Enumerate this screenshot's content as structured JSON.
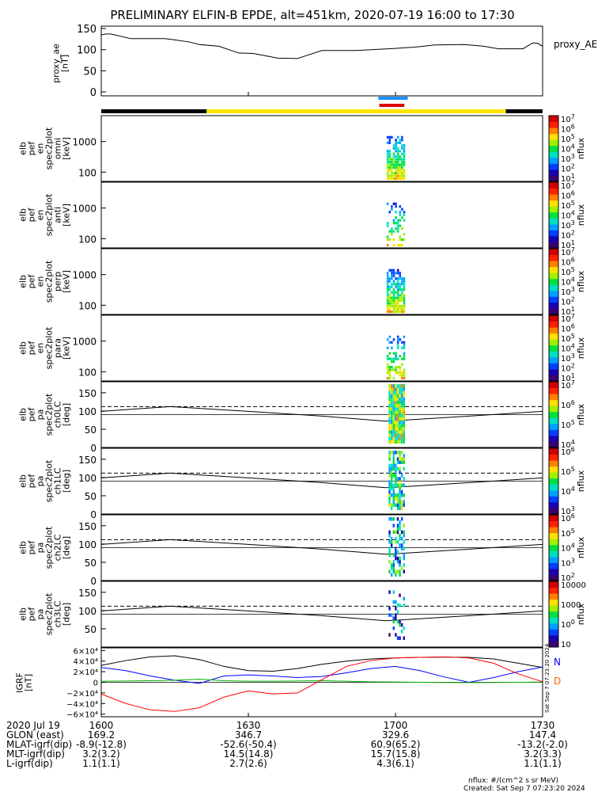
{
  "title": "PRELIMINARY ELFIN-B EPDE, alt=451km, 2020-07-19 16:00 to 17:30",
  "colors": {
    "black": "#000000",
    "yellow": "#ffe600",
    "blue_bar": "#1e90ff",
    "red_bar": "#e00000",
    "gsm_x": "#000000",
    "gsm_y": "#0000ff",
    "gsm_z": "#00b000",
    "gsm_tot": "#ff0000"
  },
  "chart_data": [
    {
      "type": "line",
      "panel": "proxy_AE",
      "ylabel_lines": [
        "proxy_ae",
        "[nT]"
      ],
      "legend": "proxy_AE",
      "ylim": [
        0,
        150
      ],
      "yticks": [
        "0",
        "50",
        "100",
        "150"
      ],
      "x_minutes": [
        0,
        1,
        2,
        6,
        10,
        13,
        15,
        18,
        20,
        24,
        28,
        31,
        36,
        40,
        45,
        52,
        60,
        64,
        68,
        74,
        78,
        81,
        86,
        88,
        89,
        90
      ],
      "values": [
        135,
        137,
        137,
        126,
        126,
        126,
        123,
        118,
        112,
        108,
        92,
        91,
        80,
        79,
        98,
        98,
        103,
        106,
        111,
        112,
        108,
        102,
        102,
        116,
        115,
        108
      ]
    },
    {
      "type": "bar",
      "panel": "orbit/science indicator bars",
      "segments": [
        {
          "label": "black",
          "from_minute": 0,
          "to_minute": 21.5
        },
        {
          "label": "yellow",
          "from_minute": 21.5,
          "to_minute": 82.5
        },
        {
          "label": "black",
          "from_minute": 82.5,
          "to_minute": 90
        }
      ],
      "markers": [
        {
          "label": "blue",
          "from_minute": 56.5,
          "to_minute": 62.5
        },
        {
          "label": "red",
          "from_minute": 56.7,
          "to_minute": 61.8
        }
      ]
    },
    {
      "type": "heatmap",
      "panel": "elb pef spec2plot omni",
      "ylabel_lines": [
        "elb",
        "pef",
        "en",
        "spec2plot",
        "omni",
        "[keV]"
      ],
      "yscale": "log",
      "ylim": [
        50,
        7000
      ],
      "yticks": [
        "100",
        "1000"
      ],
      "colorbar": {
        "label": "nflux",
        "ticks": [
          "101",
          "102",
          "103",
          "104",
          "105",
          "106",
          "107"
        ]
      }
    },
    {
      "type": "heatmap",
      "panel": "elb pef spec2plot anti",
      "ylabel_lines": [
        "elb",
        "pef",
        "en",
        "spec2plot",
        "anti",
        "[keV]"
      ],
      "yscale": "log",
      "ylim": [
        50,
        7000
      ],
      "yticks": [
        "100",
        "1000"
      ],
      "colorbar": {
        "label": "nflux",
        "ticks": [
          "101",
          "102",
          "103",
          "104",
          "105",
          "106",
          "107"
        ]
      }
    },
    {
      "type": "heatmap",
      "panel": "elb pef spec2plot perp",
      "ylabel_lines": [
        "elb",
        "pef",
        "en",
        "spec2plot",
        "perp",
        "[keV]"
      ],
      "yscale": "log",
      "ylim": [
        50,
        7000
      ],
      "yticks": [
        "100",
        "1000"
      ],
      "colorbar": {
        "label": "nflux",
        "ticks": [
          "101",
          "102",
          "103",
          "104",
          "105",
          "106",
          "107"
        ]
      }
    },
    {
      "type": "heatmap",
      "panel": "elb pef spec2plot para",
      "ylabel_lines": [
        "elb",
        "pef",
        "en",
        "spec2plot",
        "para",
        "[keV]"
      ],
      "yscale": "log",
      "ylim": [
        50,
        7000
      ],
      "yticks": [
        "100",
        "1000"
      ],
      "colorbar": {
        "label": "nflux",
        "ticks": [
          "101",
          "102",
          "103",
          "104",
          "105",
          "106",
          "107"
        ]
      }
    },
    {
      "type": "heatmap",
      "panel": "elb pef spec2plot ch0LC",
      "ylabel_lines": [
        "elb",
        "pef",
        "pa",
        "spec2plot",
        "ch0LC",
        "[deg]"
      ],
      "ylim": [
        0,
        180
      ],
      "yticks": [
        "0",
        "50",
        "100",
        "150"
      ],
      "colorbar": {
        "label": "nflux",
        "ticks": [
          "104",
          "105",
          "106",
          "107"
        ]
      }
    },
    {
      "type": "heatmap",
      "panel": "elb pef spec2plot ch1LC",
      "ylabel_lines": [
        "elb",
        "pef",
        "pa",
        "spec2plot",
        "ch1LC",
        "[deg]"
      ],
      "ylim": [
        0,
        180
      ],
      "yticks": [
        "0",
        "50",
        "100",
        "150"
      ],
      "colorbar": {
        "label": "nflux",
        "ticks": [
          "103",
          "104",
          "105",
          "106"
        ]
      }
    },
    {
      "type": "heatmap",
      "panel": "elb pef spec2plot ch2LC",
      "ylabel_lines": [
        "elb",
        "pef",
        "pa",
        "spec2plot",
        "ch2LC",
        "[deg]"
      ],
      "ylim": [
        0,
        180
      ],
      "yticks": [
        "0",
        "50",
        "100",
        "150"
      ],
      "colorbar": {
        "label": "nflux",
        "ticks": [
          "102",
          "103",
          "104",
          "105",
          "106"
        ]
      }
    },
    {
      "type": "heatmap",
      "panel": "elb pef spec2plot ch3LC",
      "ylabel_lines": [
        "elb",
        "pef",
        "pa",
        "spec2plot",
        "ch3LC",
        "[deg]"
      ],
      "ylim": [
        0,
        180
      ],
      "yticks": [
        "50",
        "100",
        "150"
      ],
      "colorbar": {
        "label": "nflux",
        "ticks": [
          "10",
          "100",
          "1000",
          "10000"
        ]
      }
    },
    {
      "type": "line",
      "panel": "IGRF",
      "ylabel_lines": [
        "IGRF",
        "[nT]"
      ],
      "ylim": [
        -65000,
        65000
      ],
      "yticks": [
        "6×10⁴",
        "4×10⁴",
        "2×10⁴",
        "0",
        "−2×10⁴",
        "−4×10⁴",
        "−6×10⁴"
      ],
      "legend_letters": [
        "N",
        "D"
      ],
      "x_minutes": [
        0,
        5,
        10,
        15,
        20,
        25,
        30,
        35,
        40,
        45,
        50,
        55,
        60,
        65,
        70,
        75,
        80,
        85,
        90
      ],
      "series": [
        {
          "name": "",
          "values": [
            32000,
            41000,
            48000,
            50000,
            43000,
            30000,
            22000,
            21000,
            26000,
            34000,
            40000,
            44000,
            46000,
            47000,
            47500,
            47000,
            44000,
            36000,
            28000
          ]
        },
        {
          "name": "",
          "values": [
            28000,
            22000,
            12000,
            4000,
            -2000,
            12000,
            14000,
            12000,
            9000,
            11000,
            18000,
            26000,
            30000,
            22000,
            10000,
            0,
            9000,
            20000,
            29000
          ]
        },
        {
          "name": "",
          "values": [
            2000,
            2500,
            3000,
            4000,
            6000,
            3000,
            2000,
            2000,
            2500,
            3000,
            2000,
            1000,
            500,
            0,
            -300,
            -500,
            -300,
            0,
            500
          ]
        },
        {
          "name": "",
          "values": [
            -22000,
            -40000,
            -52000,
            -55000,
            -48000,
            -28000,
            -16000,
            -22000,
            -20000,
            5000,
            30000,
            41000,
            46000,
            47000,
            48000,
            46000,
            36000,
            16000,
            1000
          ]
        }
      ]
    }
  ],
  "heatmap_scale": [
    "#3a0070",
    "#1a00b0",
    "#0040ff",
    "#00a0ff",
    "#00e0c0",
    "#00e040",
    "#a0f000",
    "#ffe000",
    "#ff8000",
    "#ff2000",
    "#d00000"
  ],
  "footer": {
    "rows": [
      {
        "label": "2020 Jul 19",
        "values": [
          "1600",
          "1630",
          "1700",
          "1730"
        ]
      },
      {
        "label": "GLON (east)",
        "values": [
          "169.2",
          "346.7",
          "329.6",
          "147.4"
        ]
      },
      {
        "label": "MLAT-igrf(dip)",
        "values": [
          "-8.9(-12.8)",
          "-52.6(-50.4)",
          "60.9(65.2)",
          "-13.2(-2.0)"
        ]
      },
      {
        "label": "MLT-igrf(dip)",
        "values": [
          "3.2(3.2)",
          "14.5(14.8)",
          "15.7(15.8)",
          "3.2(3.3)"
        ]
      },
      {
        "label": "L-igrf(dip)",
        "values": [
          "1.1(1.1)",
          "2.7(2.6)",
          "4.3(6.1)",
          "1.1(1.1)"
        ]
      }
    ],
    "units_note": "nflux: #/(cm^2 s sr MeV)",
    "created": "Created: Sat Sep  7 07:23:20 2024",
    "side_stamp": "Sat Sep  7 07:23:20 2024"
  }
}
